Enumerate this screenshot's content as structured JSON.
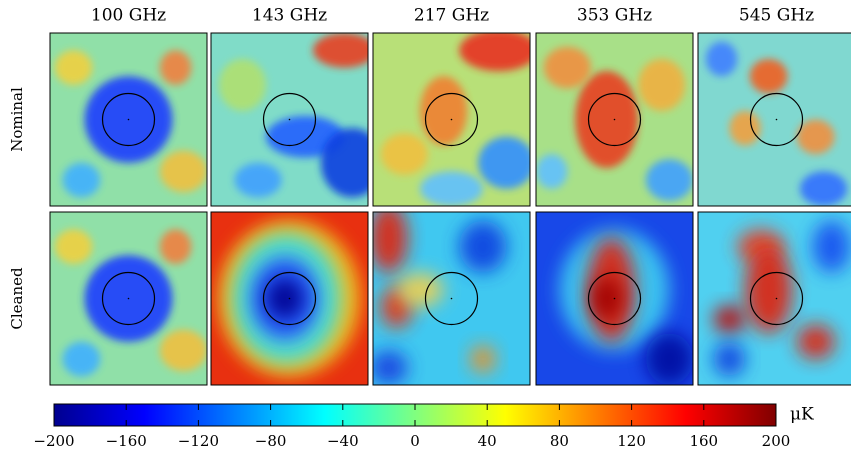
{
  "columns": [
    "100 GHz",
    "143 GHz",
    "217 GHz",
    "353 GHz",
    "545 GHz"
  ],
  "rows": [
    "Nominal",
    "Cleaned"
  ],
  "colorbar": {
    "unit": "μK",
    "lim": [
      -200,
      200
    ],
    "ticks": [
      {
        "value": -200,
        "label": "−200"
      },
      {
        "value": -160,
        "label": "−160"
      },
      {
        "value": -120,
        "label": "−120"
      },
      {
        "value": -80,
        "label": "−80"
      },
      {
        "value": -40,
        "label": "−40"
      },
      0,
      40,
      80,
      120,
      160,
      200
    ]
  }
}
